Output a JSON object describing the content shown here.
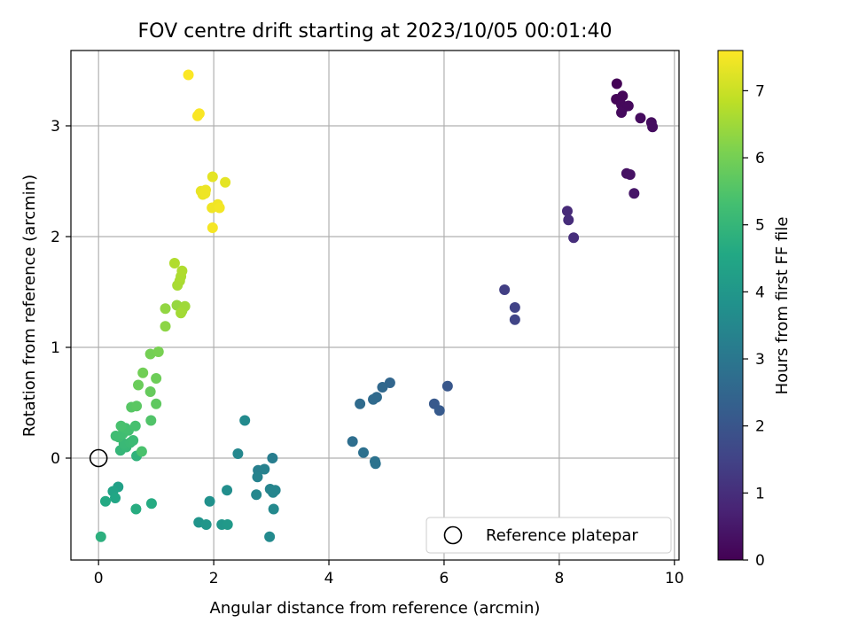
{
  "chart_data": {
    "type": "scatter",
    "title": "FOV centre drift starting at 2023/10/05 00:01:40",
    "xlabel": "Angular distance from reference (arcmin)",
    "ylabel": "Rotation from reference (arcmin)",
    "xlim": [
      -0.48,
      10.08
    ],
    "ylim": [
      -0.92,
      3.68
    ],
    "xticks": [
      0,
      2,
      4,
      6,
      8,
      10
    ],
    "yticks": [
      0,
      1,
      2,
      3
    ],
    "grid": true,
    "legend": {
      "location": "lower-right",
      "label": "Reference platepar"
    },
    "reference_point": {
      "x": 0,
      "y": 0
    },
    "colorbar": {
      "label": "Hours from first FF file",
      "colormap": "viridis",
      "range": [
        0,
        7.6
      ],
      "ticks": [
        0,
        1,
        2,
        3,
        4,
        5,
        6,
        7
      ]
    },
    "points": [
      {
        "x": 9.0,
        "y": 3.38,
        "c": 0.05
      },
      {
        "x": 8.99,
        "y": 3.24,
        "c": 0.1
      },
      {
        "x": 9.1,
        "y": 3.27,
        "c": 0.12
      },
      {
        "x": 9.08,
        "y": 3.19,
        "c": 0.15
      },
      {
        "x": 9.13,
        "y": 3.17,
        "c": 0.17
      },
      {
        "x": 9.2,
        "y": 3.18,
        "c": 0.18
      },
      {
        "x": 9.08,
        "y": 3.12,
        "c": 0.2
      },
      {
        "x": 9.41,
        "y": 3.07,
        "c": 0.22
      },
      {
        "x": 9.6,
        "y": 3.03,
        "c": 0.25
      },
      {
        "x": 9.62,
        "y": 2.99,
        "c": 0.27
      },
      {
        "x": 9.17,
        "y": 2.57,
        "c": 0.35
      },
      {
        "x": 9.23,
        "y": 2.56,
        "c": 0.37
      },
      {
        "x": 9.3,
        "y": 2.39,
        "c": 0.45
      },
      {
        "x": 8.14,
        "y": 2.23,
        "c": 0.9
      },
      {
        "x": 8.16,
        "y": 2.15,
        "c": 0.95
      },
      {
        "x": 8.25,
        "y": 1.99,
        "c": 1.0
      },
      {
        "x": 7.05,
        "y": 1.52,
        "c": 1.4
      },
      {
        "x": 7.23,
        "y": 1.36,
        "c": 1.5
      },
      {
        "x": 7.23,
        "y": 1.25,
        "c": 1.55
      },
      {
        "x": 6.06,
        "y": 0.65,
        "c": 2.05
      },
      {
        "x": 5.83,
        "y": 0.49,
        "c": 2.1
      },
      {
        "x": 5.92,
        "y": 0.43,
        "c": 2.15
      },
      {
        "x": 5.06,
        "y": 0.68,
        "c": 2.5
      },
      {
        "x": 4.93,
        "y": 0.64,
        "c": 2.55
      },
      {
        "x": 4.83,
        "y": 0.55,
        "c": 2.6
      },
      {
        "x": 4.77,
        "y": 0.53,
        "c": 2.62
      },
      {
        "x": 4.54,
        "y": 0.49,
        "c": 2.65
      },
      {
        "x": 4.41,
        "y": 0.15,
        "c": 2.75
      },
      {
        "x": 4.6,
        "y": 0.05,
        "c": 2.8
      },
      {
        "x": 4.8,
        "y": -0.03,
        "c": 2.85
      },
      {
        "x": 4.81,
        "y": -0.05,
        "c": 2.88
      },
      {
        "x": 2.54,
        "y": 0.34,
        "c": 3.6
      },
      {
        "x": 2.42,
        "y": 0.04,
        "c": 3.5
      },
      {
        "x": 3.02,
        "y": 0.0,
        "c": 3.2
      },
      {
        "x": 2.77,
        "y": -0.11,
        "c": 3.25
      },
      {
        "x": 2.88,
        "y": -0.1,
        "c": 3.3
      },
      {
        "x": 2.76,
        "y": -0.17,
        "c": 3.35
      },
      {
        "x": 2.98,
        "y": -0.28,
        "c": 3.4
      },
      {
        "x": 3.07,
        "y": -0.29,
        "c": 3.42
      },
      {
        "x": 3.03,
        "y": -0.31,
        "c": 3.45
      },
      {
        "x": 2.74,
        "y": -0.33,
        "c": 3.5
      },
      {
        "x": 3.04,
        "y": -0.46,
        "c": 3.55
      },
      {
        "x": 2.97,
        "y": -0.71,
        "c": 3.6
      },
      {
        "x": 2.23,
        "y": -0.29,
        "c": 3.7
      },
      {
        "x": 1.93,
        "y": -0.39,
        "c": 3.8
      },
      {
        "x": 1.74,
        "y": -0.58,
        "c": 3.9
      },
      {
        "x": 1.87,
        "y": -0.6,
        "c": 3.95
      },
      {
        "x": 2.14,
        "y": -0.6,
        "c": 4.0
      },
      {
        "x": 2.24,
        "y": -0.6,
        "c": 4.05
      },
      {
        "x": 0.34,
        "y": -0.26,
        "c": 4.3
      },
      {
        "x": 0.25,
        "y": -0.3,
        "c": 4.4
      },
      {
        "x": 0.29,
        "y": -0.36,
        "c": 4.5
      },
      {
        "x": 0.12,
        "y": -0.39,
        "c": 4.6
      },
      {
        "x": 0.92,
        "y": -0.41,
        "c": 4.65
      },
      {
        "x": 0.65,
        "y": -0.46,
        "c": 4.7
      },
      {
        "x": 0.04,
        "y": -0.71,
        "c": 4.8
      },
      {
        "x": 0.66,
        "y": 0.02,
        "c": 4.9
      },
      {
        "x": 0.38,
        "y": 0.07,
        "c": 5.0
      },
      {
        "x": 0.48,
        "y": 0.1,
        "c": 5.05
      },
      {
        "x": 0.44,
        "y": 0.13,
        "c": 5.1
      },
      {
        "x": 0.55,
        "y": 0.14,
        "c": 5.12
      },
      {
        "x": 0.6,
        "y": 0.16,
        "c": 5.15
      },
      {
        "x": 0.35,
        "y": 0.19,
        "c": 5.2
      },
      {
        "x": 0.3,
        "y": 0.2,
        "c": 5.22
      },
      {
        "x": 0.42,
        "y": 0.22,
        "c": 5.25
      },
      {
        "x": 0.52,
        "y": 0.25,
        "c": 5.3
      },
      {
        "x": 0.47,
        "y": 0.27,
        "c": 5.32
      },
      {
        "x": 0.64,
        "y": 0.29,
        "c": 5.35
      },
      {
        "x": 0.39,
        "y": 0.29,
        "c": 5.38
      },
      {
        "x": 0.75,
        "y": 0.06,
        "c": 5.4
      },
      {
        "x": 0.91,
        "y": 0.34,
        "c": 5.5
      },
      {
        "x": 0.57,
        "y": 0.46,
        "c": 5.6
      },
      {
        "x": 0.66,
        "y": 0.47,
        "c": 5.65
      },
      {
        "x": 1.0,
        "y": 0.49,
        "c": 5.7
      },
      {
        "x": 0.9,
        "y": 0.6,
        "c": 5.8
      },
      {
        "x": 0.69,
        "y": 0.66,
        "c": 5.85
      },
      {
        "x": 1.0,
        "y": 0.72,
        "c": 5.9
      },
      {
        "x": 0.77,
        "y": 0.77,
        "c": 5.95
      },
      {
        "x": 0.9,
        "y": 0.94,
        "c": 6.0
      },
      {
        "x": 1.04,
        "y": 0.96,
        "c": 6.05
      },
      {
        "x": 1.16,
        "y": 1.19,
        "c": 6.3
      },
      {
        "x": 1.16,
        "y": 1.35,
        "c": 6.35
      },
      {
        "x": 1.36,
        "y": 1.38,
        "c": 6.4
      },
      {
        "x": 1.45,
        "y": 1.33,
        "c": 6.45
      },
      {
        "x": 1.5,
        "y": 1.37,
        "c": 6.5
      },
      {
        "x": 1.43,
        "y": 1.31,
        "c": 6.55
      },
      {
        "x": 1.37,
        "y": 1.56,
        "c": 6.6
      },
      {
        "x": 1.41,
        "y": 1.6,
        "c": 6.62
      },
      {
        "x": 1.43,
        "y": 1.64,
        "c": 6.65
      },
      {
        "x": 1.45,
        "y": 1.69,
        "c": 6.68
      },
      {
        "x": 1.32,
        "y": 1.76,
        "c": 6.7
      },
      {
        "x": 1.98,
        "y": 2.54,
        "c": 7.3
      },
      {
        "x": 2.2,
        "y": 2.49,
        "c": 7.3
      },
      {
        "x": 1.78,
        "y": 2.41,
        "c": 7.35
      },
      {
        "x": 1.81,
        "y": 2.38,
        "c": 7.38
      },
      {
        "x": 1.86,
        "y": 2.42,
        "c": 7.4
      },
      {
        "x": 1.85,
        "y": 2.39,
        "c": 7.42
      },
      {
        "x": 2.07,
        "y": 2.29,
        "c": 7.45
      },
      {
        "x": 1.97,
        "y": 2.26,
        "c": 7.45
      },
      {
        "x": 2.1,
        "y": 2.26,
        "c": 7.48
      },
      {
        "x": 1.98,
        "y": 2.08,
        "c": 7.5
      },
      {
        "x": 1.75,
        "y": 3.11,
        "c": 7.55
      },
      {
        "x": 1.72,
        "y": 3.09,
        "c": 7.55
      },
      {
        "x": 1.56,
        "y": 3.46,
        "c": 7.58
      }
    ]
  }
}
